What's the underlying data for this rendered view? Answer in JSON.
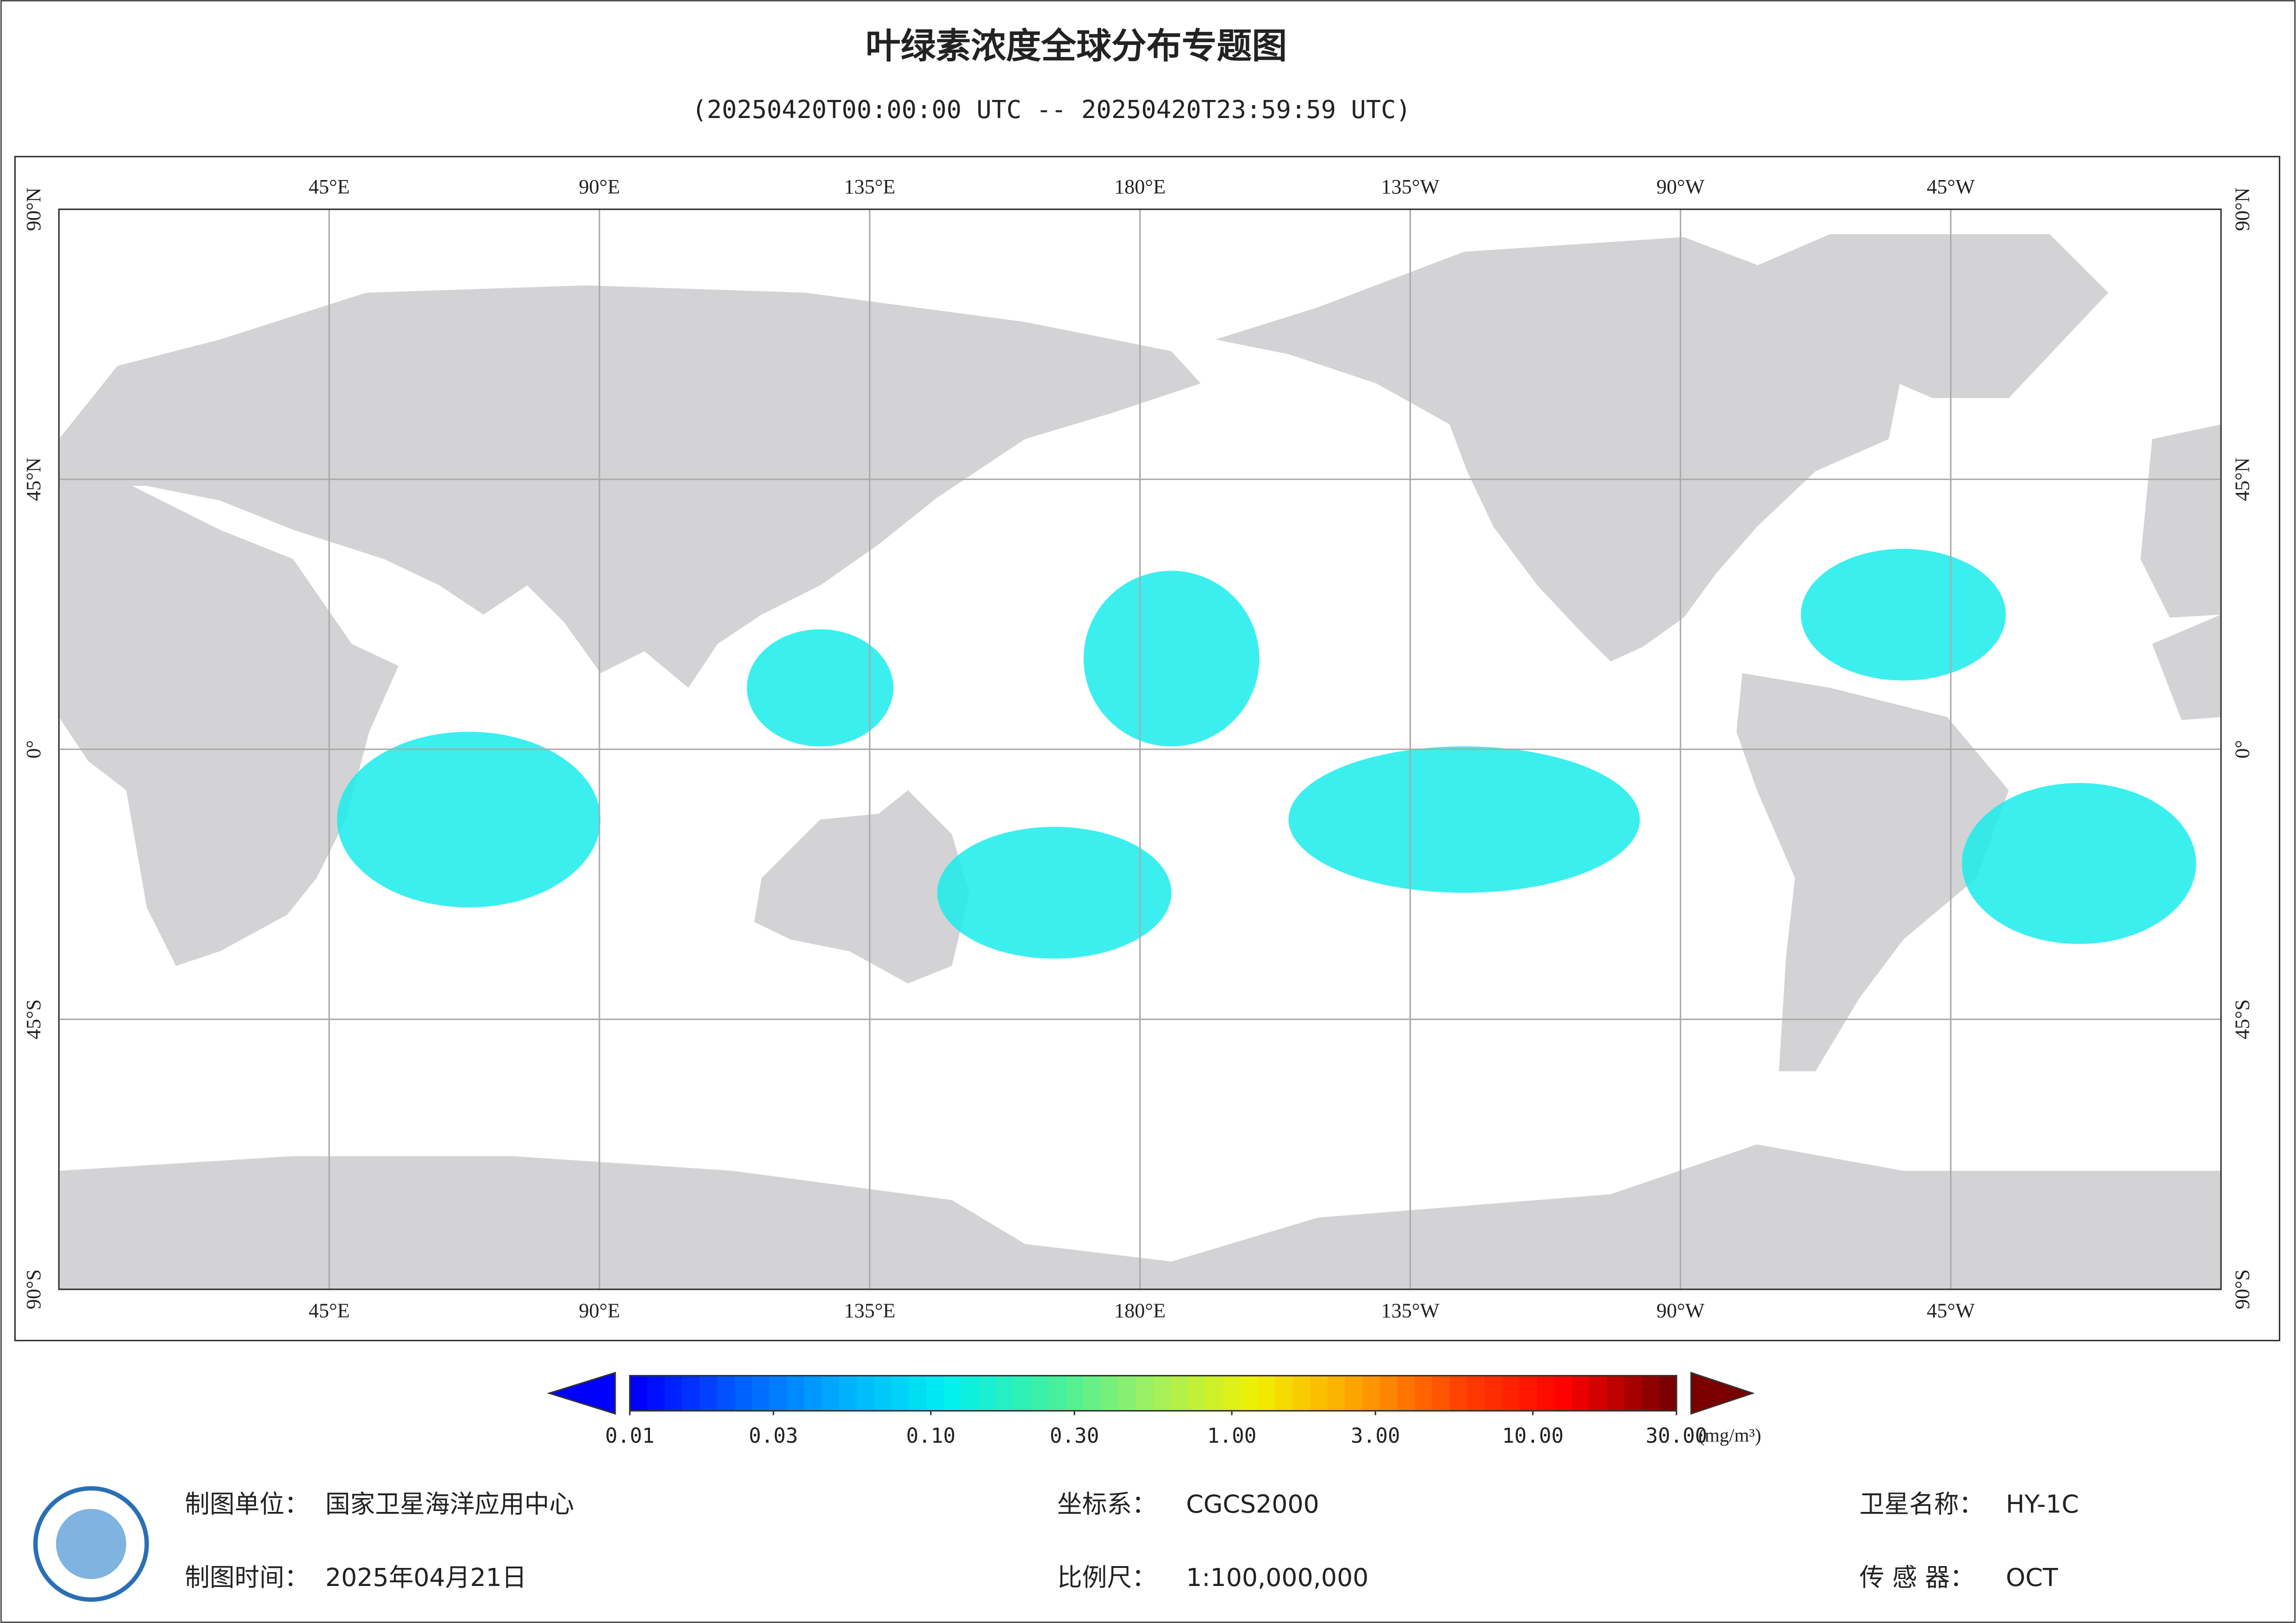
{
  "header": {
    "title": "叶绿素浓度全球分布专题图",
    "subtitle": "(20250420T00:00:00 UTC -- 20250420T23:59:59 UTC)"
  },
  "map": {
    "lonlim": [
      0,
      360
    ],
    "latlim": [
      -90,
      90
    ],
    "grid": true,
    "lonticks": [
      {
        "value": 45,
        "label": "45°E"
      },
      {
        "value": 90,
        "label": "90°E"
      },
      {
        "value": 135,
        "label": "135°E"
      },
      {
        "value": 180,
        "label": "180°E"
      },
      {
        "value": 225,
        "label": "135°W"
      },
      {
        "value": 270,
        "label": "90°W"
      },
      {
        "value": 315,
        "label": "45°W"
      }
    ],
    "latticks": [
      {
        "value": 90,
        "label": "90°N"
      },
      {
        "value": 45,
        "label": "45°N"
      },
      {
        "value": 0,
        "label": "0°"
      },
      {
        "value": -45,
        "label": "45°S"
      },
      {
        "value": -90,
        "label": "90°S"
      }
    ]
  },
  "colorbar": {
    "scale": "log",
    "lim": [
      0.01,
      30
    ],
    "unit": "(mg/m³)",
    "colors": [
      "#0000ff",
      "#0060ff",
      "#00b0ff",
      "#00f0f0",
      "#40f0a0",
      "#a0f060",
      "#f0f000",
      "#ffa000",
      "#ff4000",
      "#ff0000",
      "#7a0000"
    ],
    "ticks": [
      {
        "value": 0.01,
        "label": "0.01"
      },
      {
        "value": 0.03,
        "label": "0.03"
      },
      {
        "value": 0.1,
        "label": "0.10"
      },
      {
        "value": 0.3,
        "label": "0.30"
      },
      {
        "value": 1,
        "label": "1.00"
      },
      {
        "value": 3,
        "label": "3.00"
      },
      {
        "value": 10,
        "label": "10.00"
      },
      {
        "value": 30,
        "label": "30.00"
      }
    ]
  },
  "footer": {
    "unit": {
      "label": "制图单位：",
      "value": "国家卫星海洋应用中心"
    },
    "date": {
      "label": "制图时间：",
      "value": "2025年04月21日"
    },
    "crs": {
      "label": "坐标系：",
      "value": "CGCS2000"
    },
    "scale": {
      "label": "比例尺：",
      "value": "1:100,000,000"
    },
    "satellite": {
      "label": "卫星名称：",
      "value": "HY-1C"
    },
    "sensor": {
      "label": "传 感 器：",
      "value": "OCT"
    }
  }
}
